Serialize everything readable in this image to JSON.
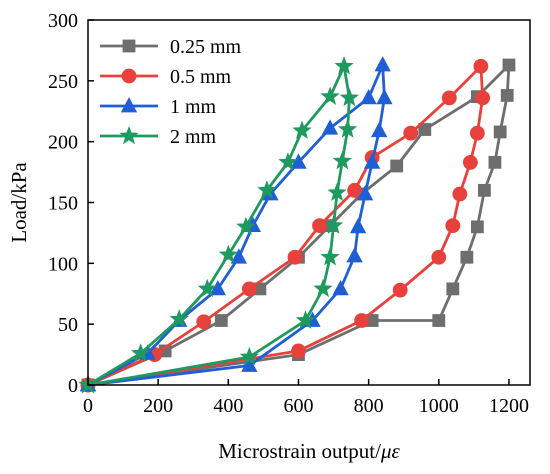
{
  "chart_data": {
    "type": "line",
    "xlabel": "Microstrain output/",
    "xlabel_unit": "με",
    "ylabel": "Load/kPa",
    "xlim": [
      0,
      1260
    ],
    "ylim": [
      0,
      300
    ],
    "xticks": [
      0,
      200,
      400,
      600,
      800,
      1000,
      1200
    ],
    "yticks": [
      0,
      50,
      100,
      150,
      200,
      250,
      300
    ],
    "grid": false,
    "legend_position": "top-left",
    "series": [
      {
        "name": "0.25 mm",
        "color": "#6e6e6e",
        "marker": "square",
        "points": [
          [
            0,
            0
          ],
          [
            220,
            28
          ],
          [
            380,
            53
          ],
          [
            490,
            79
          ],
          [
            600,
            105
          ],
          [
            690,
            131
          ],
          [
            780,
            157
          ],
          [
            880,
            180
          ],
          [
            960,
            210
          ],
          [
            1110,
            237
          ],
          [
            1200,
            263
          ],
          [
            1195,
            238
          ],
          [
            1175,
            208
          ],
          [
            1160,
            183
          ],
          [
            1130,
            160
          ],
          [
            1110,
            130
          ],
          [
            1080,
            105
          ],
          [
            1040,
            79
          ],
          [
            1000,
            53
          ],
          [
            810,
            53
          ],
          [
            600,
            25
          ],
          [
            0,
            0
          ]
        ]
      },
      {
        "name": "0.5 mm",
        "color": "#e8413b",
        "marker": "circle",
        "points": [
          [
            0,
            0
          ],
          [
            190,
            25
          ],
          [
            330,
            52
          ],
          [
            460,
            79
          ],
          [
            590,
            105
          ],
          [
            660,
            131
          ],
          [
            760,
            160
          ],
          [
            810,
            187
          ],
          [
            920,
            207
          ],
          [
            1030,
            236
          ],
          [
            1120,
            262
          ],
          [
            1125,
            236
          ],
          [
            1110,
            207
          ],
          [
            1090,
            183
          ],
          [
            1060,
            157
          ],
          [
            1040,
            131
          ],
          [
            1000,
            105
          ],
          [
            890,
            78
          ],
          [
            780,
            53
          ],
          [
            600,
            28
          ],
          [
            0,
            0
          ]
        ]
      },
      {
        "name": "1 mm",
        "color": "#1f5fd6",
        "marker": "triangle",
        "points": [
          [
            0,
            0
          ],
          [
            170,
            26
          ],
          [
            260,
            53
          ],
          [
            370,
            79
          ],
          [
            430,
            105
          ],
          [
            470,
            131
          ],
          [
            520,
            157
          ],
          [
            600,
            183
          ],
          [
            690,
            211
          ],
          [
            800,
            236
          ],
          [
            840,
            263
          ],
          [
            845,
            236
          ],
          [
            830,
            209
          ],
          [
            810,
            183
          ],
          [
            790,
            157
          ],
          [
            770,
            130
          ],
          [
            760,
            106
          ],
          [
            720,
            79
          ],
          [
            640,
            53
          ],
          [
            460,
            16
          ],
          [
            0,
            0
          ]
        ]
      },
      {
        "name": "2 mm",
        "color": "#1f9a5e",
        "marker": "star",
        "points": [
          [
            0,
            0
          ],
          [
            150,
            26
          ],
          [
            260,
            54
          ],
          [
            340,
            79
          ],
          [
            400,
            107
          ],
          [
            450,
            130
          ],
          [
            510,
            160
          ],
          [
            570,
            183
          ],
          [
            610,
            209
          ],
          [
            690,
            237
          ],
          [
            730,
            262
          ],
          [
            745,
            236
          ],
          [
            740,
            210
          ],
          [
            725,
            184
          ],
          [
            710,
            158
          ],
          [
            700,
            131
          ],
          [
            690,
            105
          ],
          [
            670,
            79
          ],
          [
            620,
            53
          ],
          [
            460,
            23
          ],
          [
            0,
            0
          ]
        ]
      }
    ]
  }
}
